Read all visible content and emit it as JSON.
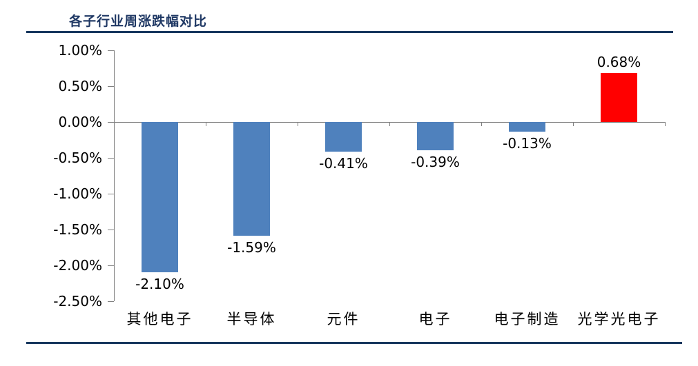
{
  "header": {
    "title": "各子行业周涨跌幅对比"
  },
  "colors": {
    "title_text": "#1F3864",
    "rule": "#17375E",
    "axis": "#808080",
    "bar_negative": "#4F81BD",
    "bar_positive": "#FF0000",
    "label_text": "#000000"
  },
  "chart_data": {
    "type": "bar",
    "title": "各子行业周涨跌幅对比",
    "categories": [
      "其他电子",
      "半导体",
      "元件",
      "电子",
      "电子制造",
      "光学光电子"
    ],
    "values": [
      -2.1,
      -1.59,
      -0.41,
      -0.39,
      -0.13,
      0.68
    ],
    "data_labels": [
      "-2.10%",
      "-1.59%",
      "-0.41%",
      "-0.39%",
      "-0.13%",
      "0.68%"
    ],
    "bar_colors": [
      "#4F81BD",
      "#4F81BD",
      "#4F81BD",
      "#4F81BD",
      "#4F81BD",
      "#FF0000"
    ],
    "y_ticks": [
      "1.00%",
      "0.50%",
      "0.00%",
      "-0.50%",
      "-1.00%",
      "-1.50%",
      "-2.00%",
      "-2.50%"
    ],
    "y_tick_values": [
      1.0,
      0.5,
      0.0,
      -0.5,
      -1.0,
      -1.5,
      -2.0,
      -2.5
    ],
    "ylim": [
      -2.5,
      1.0
    ],
    "y_tick_step": 0.5,
    "unit": "%",
    "xlabel": "",
    "ylabel": "",
    "grid": false,
    "legend": null
  }
}
